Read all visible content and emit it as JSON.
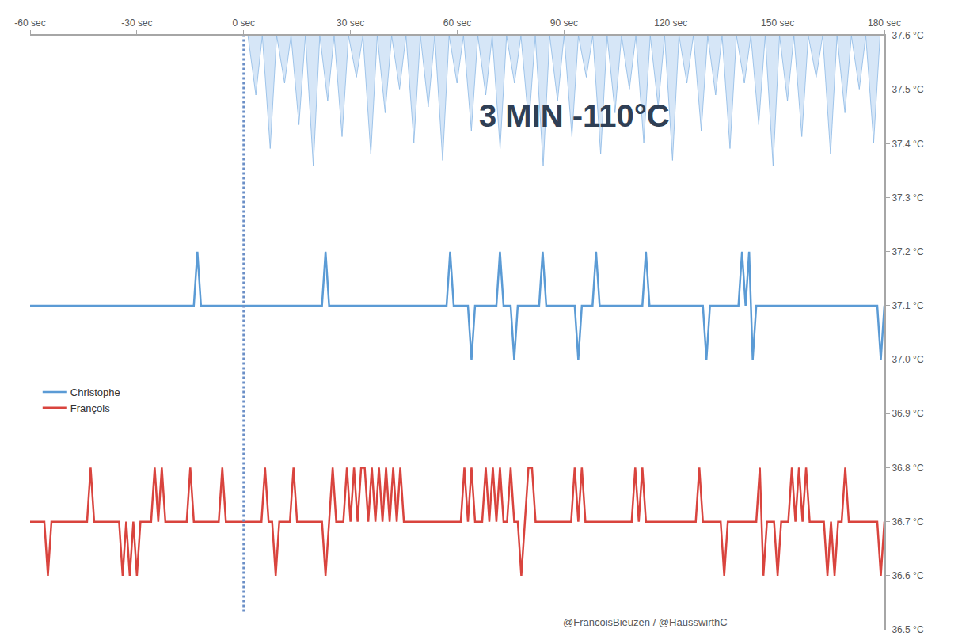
{
  "chart_data": {
    "type": "line",
    "annotation": "3 MIN -110°C",
    "source": "@FrancoisBieuzen / @HausswirthC",
    "xlim": [
      -60,
      180
    ],
    "xticks": [
      {
        "value": -60,
        "label": "-60 sec"
      },
      {
        "value": -30,
        "label": "-30 sec"
      },
      {
        "value": 0,
        "label": "0 sec"
      },
      {
        "value": 30,
        "label": "30 sec"
      },
      {
        "value": 60,
        "label": "60 sec"
      },
      {
        "value": 90,
        "label": "90 sec"
      },
      {
        "value": 120,
        "label": "120 sec"
      },
      {
        "value": 150,
        "label": "150 sec"
      },
      {
        "value": 180,
        "label": "180 sec"
      }
    ],
    "ylim": [
      36.5,
      37.6
    ],
    "yticks": [
      {
        "value": 36.5,
        "label": "36.5 °C"
      },
      {
        "value": 36.6,
        "label": "36.6 °C"
      },
      {
        "value": 36.7,
        "label": "36.7 °C"
      },
      {
        "value": 36.8,
        "label": "36.8 °C"
      },
      {
        "value": 36.9,
        "label": "36.9 °C"
      },
      {
        "value": 37.0,
        "label": "37.0 °C"
      },
      {
        "value": 37.1,
        "label": "37.1 °C"
      },
      {
        "value": 37.2,
        "label": "37.2 °C"
      },
      {
        "value": 37.3,
        "label": "37.3 °C"
      },
      {
        "value": 37.4,
        "label": "37.4 °C"
      },
      {
        "value": 37.5,
        "label": "37.5 °C"
      },
      {
        "value": 37.6,
        "label": "37.6 °C"
      }
    ],
    "grid": false,
    "legend": "left",
    "reference_line": {
      "x": 0
    },
    "series": [
      {
        "name": "Christophe",
        "color": "#5b9bd5",
        "x": [
          -60,
          -14,
          -13,
          -12,
          22,
          23,
          24,
          57,
          58,
          59,
          63,
          64,
          65,
          71,
          72,
          73,
          75,
          76,
          77,
          83,
          84,
          85,
          93,
          94,
          95,
          98,
          99,
          100,
          112,
          113,
          114,
          129,
          130,
          131,
          139,
          140,
          141,
          142,
          143,
          144,
          178,
          179,
          180
        ],
        "values": [
          37.1,
          37.1,
          37.2,
          37.1,
          37.1,
          37.2,
          37.1,
          37.1,
          37.2,
          37.1,
          37.1,
          37.0,
          37.1,
          37.1,
          37.2,
          37.1,
          37.1,
          37.0,
          37.1,
          37.1,
          37.2,
          37.1,
          37.1,
          37.0,
          37.1,
          37.1,
          37.2,
          37.1,
          37.1,
          37.2,
          37.1,
          37.1,
          37.0,
          37.1,
          37.1,
          37.2,
          37.1,
          37.2,
          37.0,
          37.1,
          37.1,
          37.0,
          37.1
        ]
      },
      {
        "name": "François",
        "color": "#d9443e",
        "x": [
          -60,
          -56,
          -55,
          -54,
          -44,
          -43,
          -42,
          -35,
          -34,
          -33,
          -32,
          -31,
          -30,
          -29,
          -26,
          -25,
          -24,
          -23,
          -22,
          -16,
          -15,
          -14,
          -7,
          -6,
          -5,
          5,
          6,
          7,
          8,
          9,
          10,
          13,
          14,
          15,
          22,
          23,
          24,
          25,
          26,
          28,
          29,
          30,
          31,
          32,
          33,
          34,
          35,
          36,
          37,
          38,
          39,
          40,
          41,
          42,
          43,
          44,
          45,
          61,
          62,
          63,
          64,
          65,
          67,
          68,
          69,
          70,
          71,
          72,
          73,
          74,
          75,
          76,
          77,
          78,
          79,
          80,
          81,
          82,
          92,
          93,
          94,
          95,
          96,
          109,
          110,
          111,
          112,
          113,
          127,
          128,
          129,
          134,
          135,
          136,
          144,
          145,
          146,
          147,
          149,
          150,
          151,
          153,
          154,
          155,
          156,
          157,
          158,
          159,
          163,
          164,
          165,
          166,
          167,
          168,
          169,
          170,
          178,
          179,
          180
        ],
        "values": [
          36.7,
          36.7,
          36.6,
          36.7,
          36.7,
          36.8,
          36.7,
          36.7,
          36.6,
          36.7,
          36.6,
          36.7,
          36.6,
          36.7,
          36.7,
          36.8,
          36.7,
          36.8,
          36.7,
          36.7,
          36.8,
          36.7,
          36.7,
          36.8,
          36.7,
          36.7,
          36.8,
          36.7,
          36.7,
          36.6,
          36.7,
          36.7,
          36.8,
          36.7,
          36.7,
          36.6,
          36.7,
          36.8,
          36.7,
          36.7,
          36.8,
          36.7,
          36.8,
          36.7,
          36.8,
          36.8,
          36.7,
          36.8,
          36.7,
          36.8,
          36.7,
          36.8,
          36.7,
          36.8,
          36.7,
          36.8,
          36.7,
          36.7,
          36.8,
          36.7,
          36.8,
          36.7,
          36.7,
          36.8,
          36.7,
          36.8,
          36.7,
          36.8,
          36.7,
          36.7,
          36.8,
          36.7,
          36.7,
          36.6,
          36.7,
          36.8,
          36.8,
          36.7,
          36.7,
          36.8,
          36.7,
          36.8,
          36.7,
          36.7,
          36.8,
          36.7,
          36.8,
          36.7,
          36.7,
          36.8,
          36.7,
          36.7,
          36.6,
          36.7,
          36.7,
          36.8,
          36.6,
          36.7,
          36.7,
          36.6,
          36.7,
          36.7,
          36.8,
          36.7,
          36.8,
          36.7,
          36.8,
          36.7,
          36.7,
          36.6,
          36.7,
          36.6,
          36.7,
          36.7,
          36.8,
          36.7,
          36.7,
          36.6,
          36.7
        ]
      }
    ]
  }
}
